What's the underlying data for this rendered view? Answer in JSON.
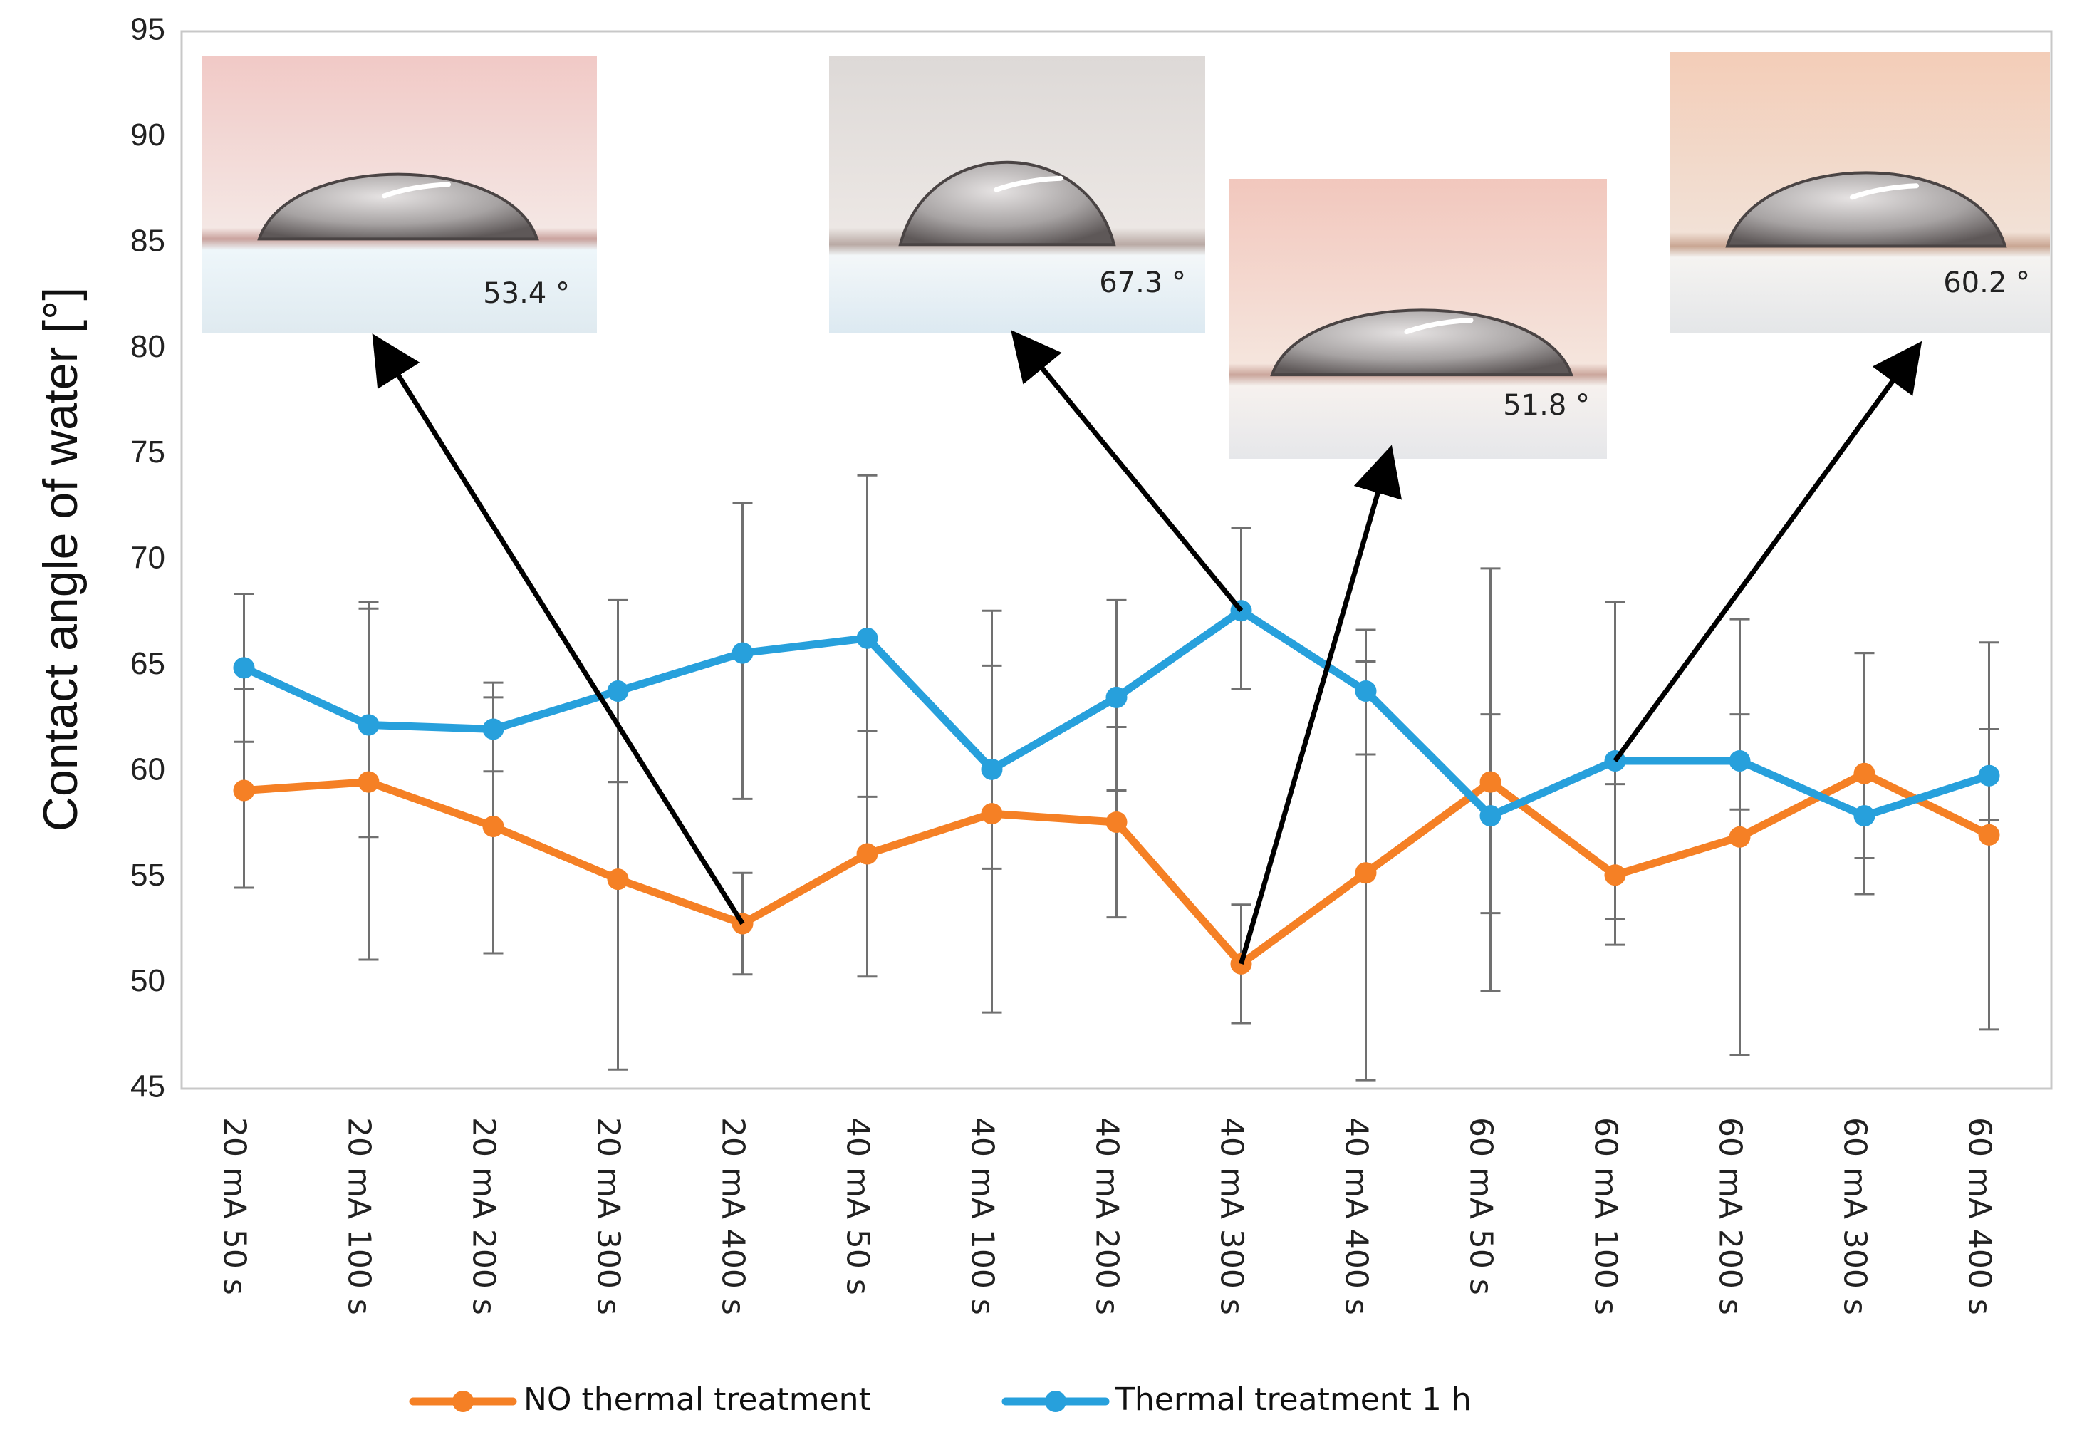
{
  "chart_data": {
    "type": "line",
    "title": "",
    "xlabel": "",
    "ylabel": "Contact angle of water [°]",
    "ylim": [
      45,
      95
    ],
    "yticks": [
      45,
      50,
      55,
      60,
      65,
      70,
      75,
      80,
      85,
      90,
      95
    ],
    "grid": false,
    "legend_position": "bottom",
    "categories": [
      "20 mA 50 s",
      "20 mA 100 s",
      "20 mA 200 s",
      "20 mA 300 s",
      "20 mA 400 s",
      "40 mA 50 s",
      "40 mA 100 s",
      "40 mA 200 s",
      "40 mA 300 s",
      "40 mA 400 s",
      "60 mA 50 s",
      "60 mA 100 s",
      "60 mA 200 s",
      "60 mA 300 s",
      "60 mA 400 s"
    ],
    "series": [
      {
        "name": "NO thermal treatment",
        "color": "#f58025",
        "values": [
          59.1,
          59.5,
          57.4,
          54.9,
          52.8,
          56.1,
          58.0,
          57.6,
          50.9,
          55.2,
          59.5,
          55.1,
          56.9,
          59.9,
          57.0
        ],
        "error_low": [
          54.5,
          51.1,
          51.4,
          45.9,
          50.4,
          50.3,
          48.6,
          53.1,
          48.1,
          45.4,
          53.3,
          51.8,
          46.6,
          54.2,
          47.8
        ],
        "error_high": [
          63.9,
          67.7,
          63.5,
          59.5,
          55.2,
          61.9,
          65.0,
          62.1,
          53.7,
          65.2,
          62.7,
          59.4,
          62.7,
          65.6,
          62.0
        ]
      },
      {
        "name": "Thermal treatment 1 h",
        "color": "#27a0dc",
        "values": [
          64.9,
          62.2,
          62.0,
          63.8,
          65.6,
          66.3,
          60.1,
          63.5,
          67.6,
          63.8,
          57.9,
          60.5,
          60.5,
          57.9,
          59.8
        ],
        "error_low": [
          61.4,
          56.9,
          60.0,
          59.5,
          58.7,
          58.8,
          55.4,
          59.1,
          63.9,
          60.8,
          49.6,
          53.0,
          58.2,
          55.9,
          57.7
        ],
        "error_high": [
          68.4,
          68.0,
          64.2,
          68.1,
          72.7,
          74.0,
          67.6,
          68.1,
          71.5,
          66.7,
          69.6,
          68.0,
          67.2,
          65.6,
          66.1
        ]
      }
    ],
    "annotations": [
      {
        "label": "53.4 °",
        "points_to": "20 mA 400 s",
        "series": "NO thermal treatment",
        "photo_tint": "#e9c3c0"
      },
      {
        "label": "67.3 °",
        "points_to": "40 mA 300 s",
        "series": "Thermal treatment 1 h",
        "photo_tint": "#d9d6d4"
      },
      {
        "label": "51.8 °",
        "points_to": "40 mA 300 s",
        "series": "NO thermal treatment",
        "photo_tint": "#efc4bb"
      },
      {
        "label": "60.2 °",
        "points_to": "60 mA 100 s",
        "series": "Thermal treatment 1 h",
        "photo_tint": "#efcab5"
      }
    ]
  }
}
